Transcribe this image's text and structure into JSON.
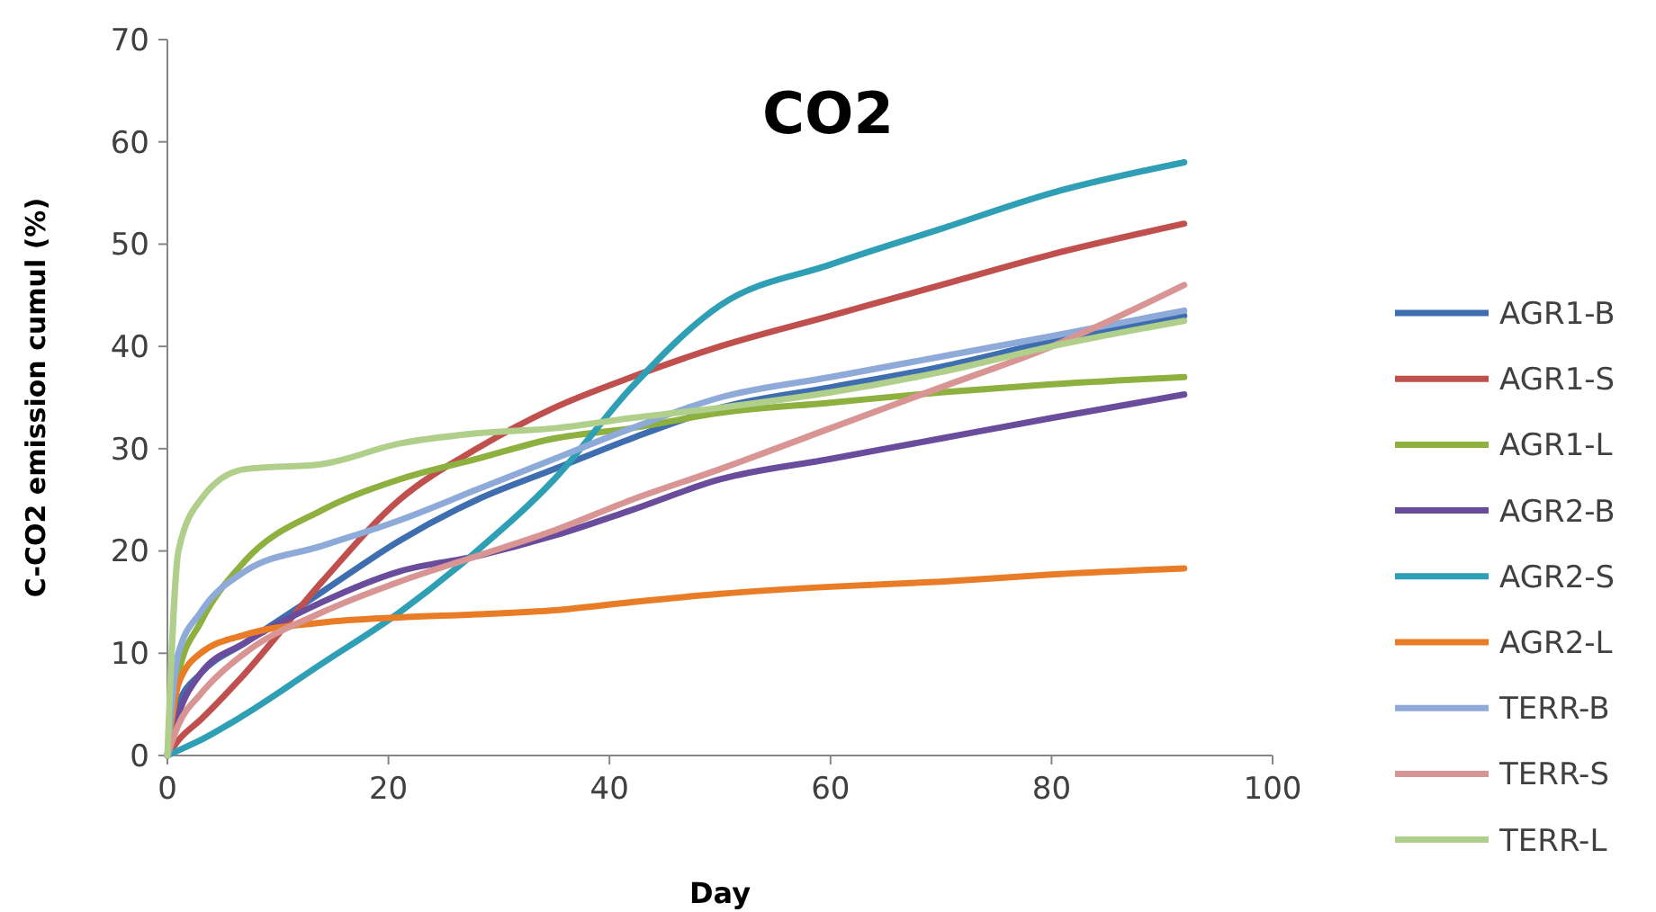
{
  "chart_data": {
    "type": "line",
    "title": "CO2",
    "xlabel": "Day",
    "ylabel": "C-CO2 emission cumul (%)",
    "x": [
      0,
      1,
      3,
      7,
      14,
      21,
      28,
      35,
      42,
      50,
      60,
      70,
      80,
      92
    ],
    "xlim": [
      0,
      100
    ],
    "xticks": [
      0,
      20,
      40,
      60,
      80,
      100
    ],
    "ylim": [
      0,
      70
    ],
    "yticks": [
      0,
      10,
      20,
      30,
      40,
      50,
      60,
      70
    ],
    "grid": false,
    "legend": "right",
    "marker": "none",
    "line_style": "solid",
    "series": [
      {
        "name": "AGR1-B",
        "color": "#3f6eb0",
        "values": [
          0,
          5,
          8,
          11,
          16,
          21,
          25,
          28,
          31,
          34,
          36,
          38,
          40.5,
          43
        ]
      },
      {
        "name": "AGR1-S",
        "color": "#c0504d",
        "values": [
          0,
          1.5,
          3.5,
          8,
          17,
          25,
          30,
          34,
          37,
          40,
          43,
          46,
          49,
          52
        ]
      },
      {
        "name": "AGR1-L",
        "color": "#8db03f",
        "values": [
          0,
          8,
          13,
          19,
          24,
          27,
          29,
          31,
          32,
          33.5,
          34.5,
          35.5,
          36.3,
          37
        ]
      },
      {
        "name": "AGR2-B",
        "color": "#6a4c9c",
        "values": [
          0,
          4,
          8,
          11,
          15,
          18,
          19.5,
          21.5,
          24,
          27,
          29,
          31,
          33,
          35.3
        ]
      },
      {
        "name": "AGR2-S",
        "color": "#2e9fb4",
        "values": [
          0,
          0.5,
          1.5,
          4,
          9,
          14,
          20,
          27,
          36,
          44,
          48,
          51.5,
          55,
          58
        ]
      },
      {
        "name": "AGR2-L",
        "color": "#e97d27",
        "values": [
          0,
          7,
          10,
          11.8,
          13,
          13.5,
          13.8,
          14.2,
          15,
          15.8,
          16.5,
          17,
          17.7,
          18.3
        ]
      },
      {
        "name": "TERR-B",
        "color": "#8eaad8",
        "values": [
          0,
          10,
          14,
          18,
          20.5,
          23,
          26,
          29,
          32,
          35,
          37,
          39,
          41,
          43.5
        ]
      },
      {
        "name": "TERR-S",
        "color": "#d99594",
        "values": [
          0,
          3,
          6,
          10,
          14,
          17,
          19.5,
          22,
          25,
          28,
          32,
          36,
          40,
          46
        ]
      },
      {
        "name": "TERR-L",
        "color": "#b0cf8a",
        "values": [
          0,
          20,
          25,
          28,
          28.5,
          30.5,
          31.5,
          32,
          33,
          34,
          35.5,
          37.5,
          40,
          42.5
        ]
      }
    ]
  }
}
